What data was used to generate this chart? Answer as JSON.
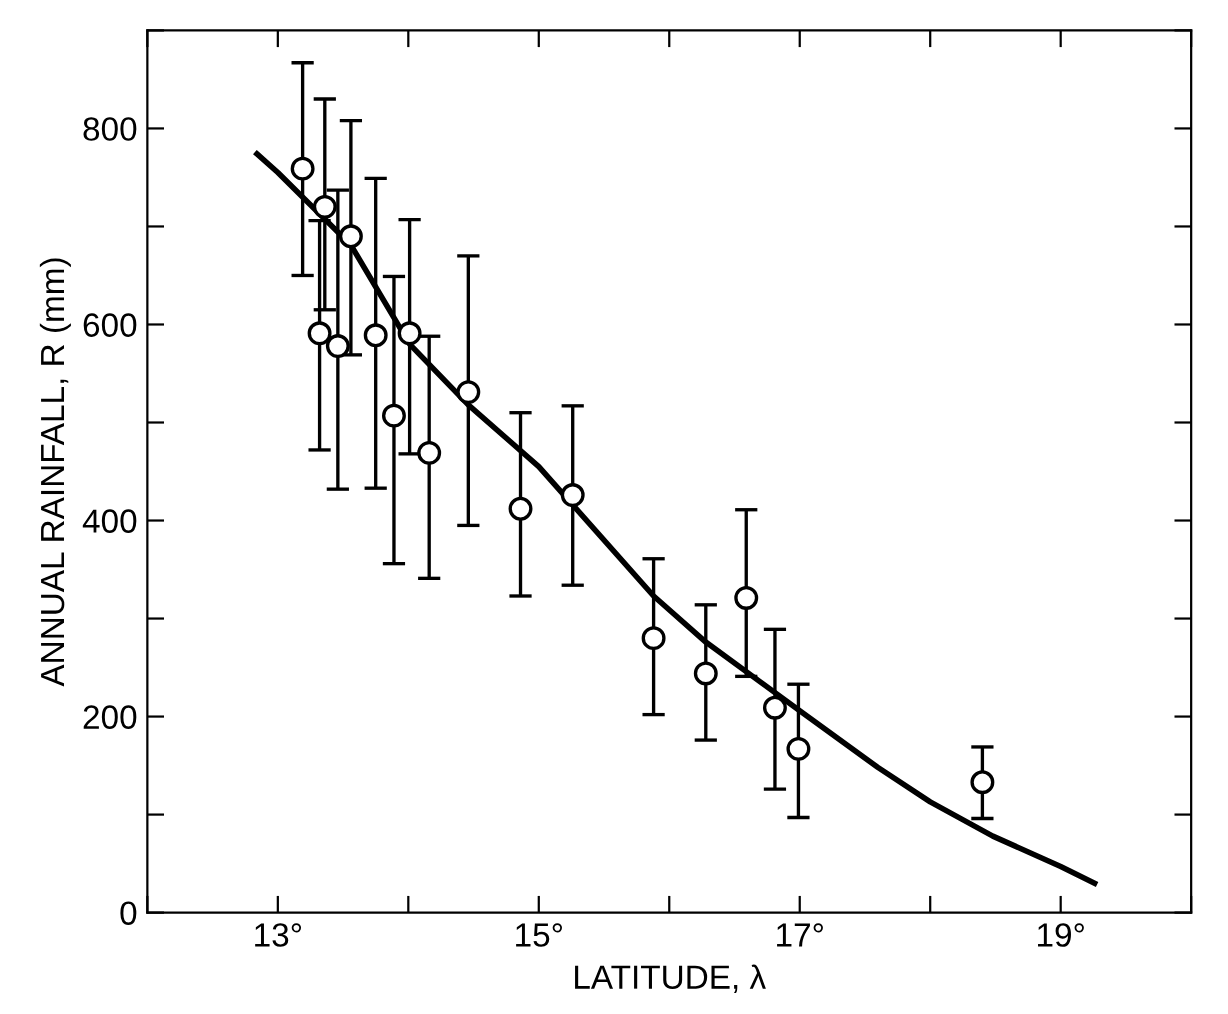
{
  "chart_data": {
    "type": "scatter",
    "xlabel": "LATITUDE, λ",
    "ylabel": "ANNUAL RAINFALL, R (mm)",
    "xlim": [
      12,
      20
    ],
    "ylim": [
      0,
      900
    ],
    "xticks": [
      {
        "value": 12,
        "label": null
      },
      {
        "value": 13,
        "label": "13°"
      },
      {
        "value": 14,
        "label": null
      },
      {
        "value": 15,
        "label": "15°"
      },
      {
        "value": 16,
        "label": null
      },
      {
        "value": 17,
        "label": "17°"
      },
      {
        "value": 18,
        "label": null
      },
      {
        "value": 19,
        "label": "19°"
      },
      {
        "value": 20,
        "label": null
      }
    ],
    "yticks": [
      0,
      {
        "value": 100,
        "label": null
      },
      200,
      {
        "value": 300,
        "label": null
      },
      400,
      {
        "value": 500,
        "label": null
      },
      600,
      {
        "value": 700,
        "label": null
      },
      800,
      {
        "value": 900,
        "label": null
      }
    ],
    "grid": false,
    "series": [
      {
        "color": "#000000",
        "marker": "circle",
        "x": [
          13.19,
          13.32,
          13.36,
          13.46,
          13.56,
          13.75,
          13.89,
          14.01,
          14.16,
          14.46,
          14.86,
          15.26,
          15.88,
          16.28,
          16.59,
          16.81,
          16.99,
          18.4
        ],
        "values": [
          759,
          591,
          720,
          578,
          690,
          589,
          507,
          591,
          469,
          531,
          412,
          426,
          280,
          244,
          321,
          209,
          167,
          133
        ],
        "errors": [
          [
            650,
            867
          ],
          [
            472,
            706
          ],
          [
            615,
            830
          ],
          [
            432,
            737
          ],
          [
            569,
            808
          ],
          [
            433,
            749
          ],
          [
            356,
            649
          ],
          [
            468,
            707
          ],
          [
            341,
            588
          ],
          [
            395,
            670
          ],
          [
            323,
            510
          ],
          [
            334,
            517
          ],
          [
            202,
            361
          ],
          [
            176,
            314
          ],
          [
            241,
            411
          ],
          [
            126,
            289
          ],
          [
            97,
            233
          ],
          [
            96,
            169
          ]
        ]
      },
      {
        "type": "line",
        "color": "#000000",
        "marker": "none",
        "line_style": "solid",
        "x": [
          12.84,
          13,
          13.56,
          14.01,
          14.46,
          15,
          15.26,
          15.88,
          16.28,
          17,
          17.6,
          18,
          18.48,
          19,
          19.26
        ],
        "values": [
          774,
          755,
          681,
          580,
          518,
          455,
          416,
          323,
          276,
          206,
          148,
          113,
          78,
          47,
          30
        ]
      }
    ]
  }
}
